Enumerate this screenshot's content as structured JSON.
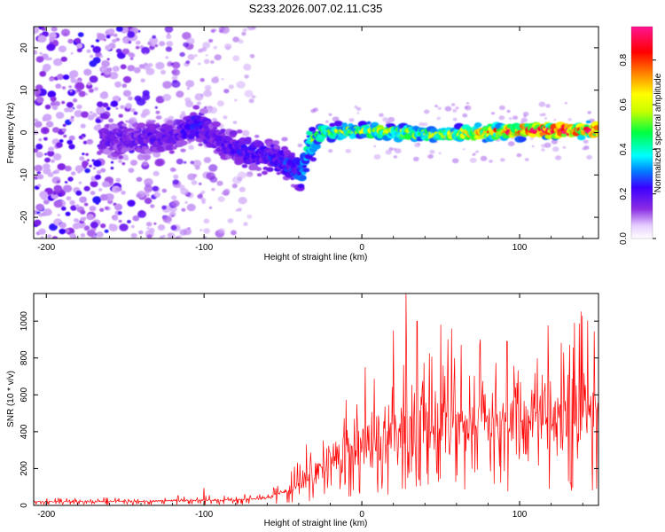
{
  "title": "S233.2026.007.02.11.C35",
  "chart_data": [
    {
      "type": "heatmap",
      "xlabel": "Height of straight line (km)",
      "ylabel": "Frequency (Hz)",
      "xlim": [
        -208,
        150
      ],
      "ylim": [
        -25,
        25
      ],
      "xticks": [
        -200,
        -100,
        0,
        100
      ],
      "yticks": [
        -20,
        -10,
        0,
        10,
        20
      ],
      "x_tick_labels": [
        "-200",
        "-100",
        "0",
        "100"
      ],
      "y_tick_labels": [
        "-20",
        "-10",
        "0",
        "10",
        "20"
      ],
      "colorbar": {
        "label": "Normalized spectral amplitude",
        "range": [
          0,
          0.95
        ],
        "ticks": [
          0,
          0.2,
          0.4,
          0.6,
          0.8
        ],
        "tick_labels": [
          "0.0",
          "0.2",
          "0.4",
          "0.6",
          "0.8"
        ],
        "colormap": [
          "#e6d0ff",
          "#8b2be2",
          "#3b00ff",
          "#0080ff",
          "#00ffff",
          "#00ff40",
          "#c8ff00",
          "#ffff00",
          "#ff8000",
          "#ff0000",
          "#ff1493"
        ]
      },
      "carrier_ridge": {
        "description_points_x": [
          -165,
          -140,
          -120,
          -104,
          -95,
          -85,
          -70,
          -55,
          -45,
          -38,
          -33,
          -30,
          -25,
          0,
          50,
          100,
          150
        ],
        "frequency_hz": [
          -1.5,
          -1.5,
          -1,
          2,
          -0.5,
          -3,
          -5,
          -6,
          -8,
          -10,
          -2,
          -2,
          0,
          0.5,
          -0.5,
          0.5,
          0.5
        ],
        "amplitude": [
          0.12,
          0.15,
          0.14,
          0.2,
          0.14,
          0.16,
          0.18,
          0.2,
          0.22,
          0.25,
          0.45,
          0.5,
          0.45,
          0.55,
          0.55,
          0.8,
          0.9
        ]
      }
    },
    {
      "type": "line",
      "xlabel": "Height of straight line (km)",
      "ylabel": "SNR (10 * v/v)",
      "xlim": [
        -208,
        150
      ],
      "ylim": [
        0,
        1150
      ],
      "xticks": [
        -200,
        -100,
        0,
        100
      ],
      "yticks": [
        0,
        200,
        400,
        600,
        800,
        1000
      ],
      "x_tick_labels": [
        "-200",
        "-100",
        "0",
        "100"
      ],
      "y_tick_labels": [
        "0",
        "200",
        "400",
        "600",
        "800",
        "1000"
      ],
      "series": [
        {
          "name": "SNR",
          "color": "#ff0000",
          "envelope_x": [
            -208,
            -150,
            -100,
            -80,
            -60,
            -45,
            -35,
            -20,
            0,
            20,
            40,
            60,
            80,
            100,
            120,
            150
          ],
          "envelope_mean": [
            20,
            22,
            28,
            30,
            40,
            90,
            140,
            250,
            330,
            380,
            420,
            440,
            450,
            470,
            490,
            510
          ],
          "peaks": [
            {
              "x": -100,
              "y": 95
            },
            {
              "x": -35,
              "y": 330
            },
            {
              "x": 2,
              "y": 750
            },
            {
              "x": 20,
              "y": 950
            },
            {
              "x": 28,
              "y": 1150
            },
            {
              "x": 35,
              "y": 1000
            },
            {
              "x": 50,
              "y": 980
            },
            {
              "x": 57,
              "y": 960
            },
            {
              "x": 75,
              "y": 900
            },
            {
              "x": 92,
              "y": 890
            },
            {
              "x": 128,
              "y": 830
            }
          ]
        }
      ]
    }
  ]
}
